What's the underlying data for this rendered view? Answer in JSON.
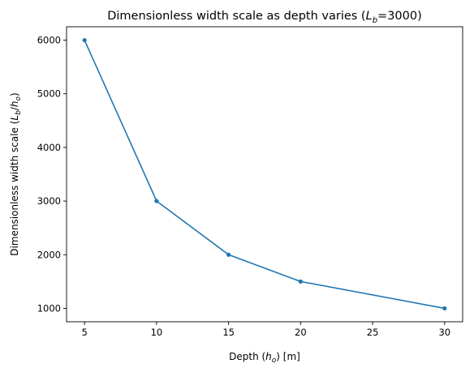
{
  "chart_data": {
    "type": "line",
    "title_main": "Dimensionless width scale as depth varies (",
    "title_var": "L",
    "title_sub": "b",
    "title_rest": "=3000)",
    "xlabel_pre": "Depth (",
    "xlabel_var": "h",
    "xlabel_sub": "o",
    "xlabel_post": ") [m]",
    "ylabel_pre": "Dimensionless width scale (",
    "ylabel_var1": "L",
    "ylabel_sub1": "b",
    "ylabel_slash": "/",
    "ylabel_var2": "h",
    "ylabel_sub2": "o",
    "ylabel_post": ")",
    "x": [
      5,
      10,
      15,
      20,
      30
    ],
    "y": [
      6000,
      3000,
      2000,
      1500,
      1000
    ],
    "xlim": [
      3.75,
      31.25
    ],
    "ylim": [
      750,
      6250
    ],
    "xticks": [
      5,
      10,
      15,
      20,
      25,
      30
    ],
    "yticks": [
      1000,
      2000,
      3000,
      4000,
      5000,
      6000
    ],
    "grid": false,
    "marker": "dot",
    "line_color": "#1f77b4"
  }
}
